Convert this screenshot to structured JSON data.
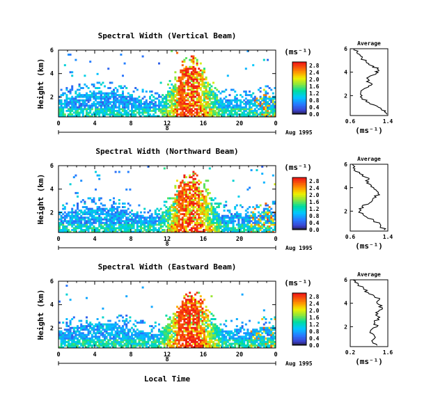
{
  "figure": {
    "xlabel_bottom": "Local Time",
    "date_label": "Aug 1995",
    "day_label": "8",
    "colorbar_unit": "(ms⁻¹)",
    "avg_unit": "(ms⁻¹)",
    "avg_title": "Average"
  },
  "chart_data": [
    {
      "type": "heatmap",
      "title": "Spectral Width (Vertical Beam)",
      "xlabel": "Local Time",
      "ylabel": "Height (km)",
      "x_ticks": [
        "0",
        "4",
        "8",
        "12",
        "16",
        "20",
        "0"
      ],
      "y_ticks": [
        "2",
        "4",
        "6"
      ],
      "xlim": [
        0,
        24
      ],
      "ylim": [
        0.3,
        6.0
      ],
      "colorbar": {
        "ticks": [
          "0.0",
          "0.4",
          "0.8",
          "1.2",
          "1.6",
          "2.0",
          "2.4",
          "2.8"
        ],
        "range": [
          0,
          3.0
        ]
      },
      "average": {
        "title": "Average",
        "xlim": [
          0.6,
          1.4
        ],
        "x_ticks": [
          "0.6",
          "1.4"
        ],
        "y_ticks": [
          "2",
          "4",
          "6"
        ],
        "profile": [
          [
            1.38,
            0.4
          ],
          [
            1.35,
            0.7
          ],
          [
            1.2,
            1.0
          ],
          [
            1.0,
            1.4
          ],
          [
            0.85,
            1.8
          ],
          [
            0.82,
            2.2
          ],
          [
            0.9,
            2.6
          ],
          [
            1.05,
            2.9
          ],
          [
            0.95,
            3.2
          ],
          [
            1.0,
            3.6
          ],
          [
            1.15,
            3.9
          ],
          [
            1.2,
            4.2
          ],
          [
            1.1,
            4.5
          ],
          [
            0.95,
            4.8
          ],
          [
            0.85,
            5.2
          ],
          [
            0.75,
            5.6
          ],
          [
            0.68,
            6.0
          ]
        ]
      }
    },
    {
      "type": "heatmap",
      "title": "Spectral Width (Northward Beam)",
      "xlabel": "Local Time",
      "ylabel": "Height (km)",
      "x_ticks": [
        "0",
        "4",
        "8",
        "12",
        "16",
        "20",
        "0"
      ],
      "y_ticks": [
        "2",
        "4",
        "6"
      ],
      "xlim": [
        0,
        24
      ],
      "ylim": [
        0.3,
        6.0
      ],
      "colorbar": {
        "ticks": [
          "0.0",
          "0.4",
          "0.8",
          "1.2",
          "1.6",
          "2.0",
          "2.4",
          "2.8"
        ],
        "range": [
          0,
          3.0
        ]
      },
      "average": {
        "title": "Average",
        "xlim": [
          0.6,
          1.4
        ],
        "x_ticks": [
          "0.6",
          "1.4"
        ],
        "y_ticks": [
          "2",
          "4",
          "6"
        ],
        "profile": [
          [
            1.32,
            0.4
          ],
          [
            1.25,
            0.8
          ],
          [
            1.1,
            1.2
          ],
          [
            0.9,
            1.6
          ],
          [
            0.8,
            2.0
          ],
          [
            0.85,
            2.4
          ],
          [
            1.05,
            2.8
          ],
          [
            1.15,
            3.2
          ],
          [
            1.2,
            3.6
          ],
          [
            1.1,
            4.0
          ],
          [
            0.95,
            4.4
          ],
          [
            1.0,
            4.8
          ],
          [
            0.8,
            5.2
          ],
          [
            0.7,
            5.6
          ],
          [
            0.65,
            6.0
          ]
        ]
      }
    },
    {
      "type": "heatmap",
      "title": "Spectral Width (Eastward Beam)",
      "xlabel": "Local Time",
      "ylabel": "Height (km)",
      "x_ticks": [
        "0",
        "4",
        "8",
        "12",
        "16",
        "20",
        "0"
      ],
      "y_ticks": [
        "2",
        "4",
        "6"
      ],
      "xlim": [
        0,
        24
      ],
      "ylim": [
        0.3,
        6.0
      ],
      "colorbar": {
        "ticks": [
          "0.0",
          "0.4",
          "0.8",
          "1.2",
          "1.6",
          "2.0",
          "2.4",
          "2.8"
        ],
        "range": [
          0,
          3.0
        ]
      },
      "average": {
        "title": "Average",
        "xlim": [
          0.2,
          1.6
        ],
        "x_ticks": [
          "0.2",
          "1.6"
        ],
        "y_ticks": [
          "2",
          "4",
          "6"
        ],
        "profile": [
          [
            1.2,
            0.4
          ],
          [
            1.0,
            0.8
          ],
          [
            1.1,
            1.2
          ],
          [
            0.95,
            1.6
          ],
          [
            1.2,
            2.0
          ],
          [
            1.1,
            2.4
          ],
          [
            1.3,
            2.8
          ],
          [
            1.15,
            3.2
          ],
          [
            1.4,
            3.6
          ],
          [
            1.2,
            4.0
          ],
          [
            1.3,
            4.4
          ],
          [
            0.9,
            4.8
          ],
          [
            0.7,
            5.2
          ],
          [
            0.5,
            5.6
          ],
          [
            0.3,
            6.0
          ]
        ]
      }
    }
  ]
}
